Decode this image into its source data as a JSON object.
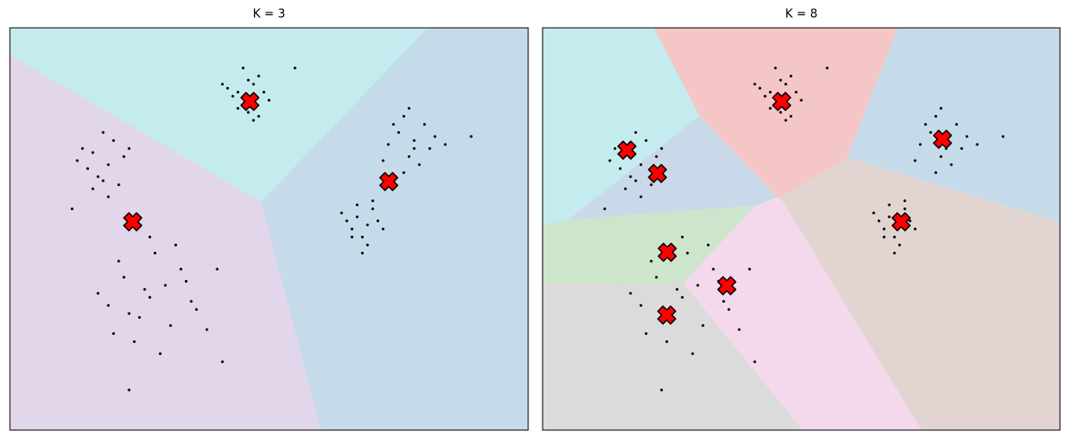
{
  "chart_data": [
    {
      "type": "scatter",
      "title": "K = 3",
      "xlim": [
        0,
        100
      ],
      "ylim": [
        0,
        100
      ],
      "points": {
        "color": "#000000",
        "x": [
          44,
          47,
          45,
          48,
          43,
          46,
          49,
          42,
          47,
          45,
          50,
          44,
          46,
          48,
          41,
          47,
          75,
          78,
          80,
          73,
          77,
          82,
          76,
          79,
          74,
          81,
          78,
          72,
          77,
          84,
          76,
          67,
          69,
          66,
          70,
          68,
          65,
          71,
          67,
          69,
          64,
          72,
          68,
          66,
          70,
          16,
          19,
          14,
          20,
          17,
          22,
          15,
          18,
          21,
          13,
          19,
          16,
          23,
          18,
          22,
          27,
          33,
          25,
          30,
          19,
          36,
          28,
          24,
          31,
          21,
          34,
          26,
          38,
          29,
          17,
          32,
          23,
          27,
          35,
          40,
          20,
          23,
          12,
          55,
          89,
          41
        ],
        "y": [
          84,
          86,
          81,
          88,
          83,
          79,
          84,
          85,
          77,
          90,
          82,
          80,
          87,
          78,
          86,
          83,
          74,
          70,
          76,
          71,
          68,
          73,
          78,
          66,
          76,
          70,
          72,
          67,
          80,
          71,
          64,
          53,
          51,
          50,
          55,
          48,
          52,
          52,
          56,
          46,
          54,
          50,
          44,
          48,
          57,
          69,
          66,
          70,
          72,
          63,
          68,
          65,
          74,
          61,
          67,
          58,
          60,
          70,
          62,
          38,
          33,
          40,
          28,
          36,
          31,
          30,
          44,
          22,
          26,
          42,
          37,
          35,
          25,
          19,
          34,
          46,
          29,
          48,
          32,
          40,
          24,
          10,
          55,
          90,
          73,
          17
        ]
      },
      "centroids": {
        "color": "#ff0000",
        "x": [
          46.3,
          73.1,
          23.7
        ],
        "y": [
          81.7,
          61.8,
          51.8
        ]
      },
      "region_colors": [
        "#c4ecef",
        "#c6dbea",
        "#e2d6ea"
      ]
    },
    {
      "type": "scatter",
      "title": "K = 8",
      "xlim": [
        0,
        100
      ],
      "ylim": [
        0,
        100
      ],
      "points": {
        "color": "#000000",
        "x": [
          44,
          47,
          45,
          48,
          43,
          46,
          49,
          42,
          47,
          45,
          50,
          44,
          46,
          48,
          41,
          47,
          75,
          78,
          80,
          73,
          77,
          82,
          76,
          79,
          74,
          81,
          78,
          72,
          77,
          84,
          76,
          67,
          69,
          66,
          70,
          68,
          65,
          71,
          67,
          69,
          64,
          72,
          68,
          66,
          70,
          16,
          19,
          14,
          20,
          17,
          22,
          15,
          18,
          21,
          13,
          19,
          16,
          23,
          18,
          22,
          27,
          33,
          25,
          30,
          19,
          36,
          28,
          24,
          31,
          21,
          34,
          26,
          38,
          29,
          17,
          32,
          23,
          27,
          35,
          40,
          20,
          23,
          12,
          55,
          89,
          41
        ],
        "y": [
          84,
          86,
          81,
          88,
          83,
          79,
          84,
          85,
          77,
          90,
          82,
          80,
          87,
          78,
          86,
          83,
          74,
          70,
          76,
          71,
          68,
          73,
          78,
          66,
          76,
          70,
          72,
          67,
          80,
          71,
          64,
          53,
          51,
          50,
          55,
          48,
          52,
          52,
          56,
          46,
          54,
          50,
          44,
          48,
          57,
          69,
          66,
          70,
          72,
          63,
          68,
          65,
          74,
          61,
          67,
          58,
          60,
          70,
          62,
          38,
          33,
          40,
          28,
          36,
          31,
          30,
          44,
          22,
          26,
          42,
          37,
          35,
          25,
          19,
          34,
          46,
          29,
          48,
          32,
          40,
          24,
          10,
          55,
          90,
          73,
          17
        ]
      },
      "centroids": {
        "color": "#ff0000",
        "x": [
          46.2,
          77.3,
          69.3,
          16.3,
          22.2,
          24.1,
          35.6,
          24.0
        ],
        "y": [
          81.7,
          72.3,
          51.8,
          69.6,
          63.8,
          44.2,
          35.9,
          28.6
        ]
      },
      "region_colors": [
        "#f4c6c6",
        "#c6dbea",
        "#e2d5d1",
        "#c4ecef",
        "#c9d9ea",
        "#cde6cb",
        "#f4d9ec",
        "#dbdbdb"
      ]
    }
  ]
}
